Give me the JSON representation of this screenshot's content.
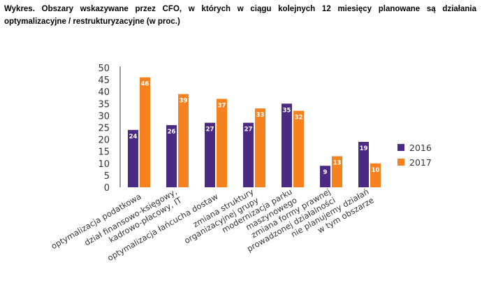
{
  "heading": "Wykres. Obszary wskazywane przez CFO, w których w ciągu kolejnych 12 miesięcy planowane są działania optymalizacyjne / restrukturyzacyjne (w proc.)",
  "chart_data": {
    "type": "bar",
    "title": "",
    "xlabel": "",
    "ylabel": "",
    "ylim": [
      0,
      50
    ],
    "yticks": [
      0,
      5,
      10,
      15,
      20,
      25,
      30,
      35,
      40,
      45,
      50
    ],
    "grid": false,
    "legend_position": "right",
    "categories": [
      [
        "optymalizacja podatkowa"
      ],
      [
        "dział finansowo-księgowy,",
        "kadrowo-płacowy, IT"
      ],
      [
        "optymalizacja łańcucha dostaw"
      ],
      [
        "zmiana struktury",
        "organizacyjnej grupy"
      ],
      [
        "modernizacja parku",
        "maszynowego"
      ],
      [
        "zmiana formy prawnej",
        "prowadzonej działalności"
      ],
      [
        "nie planujemy działań",
        "w tym obszarze"
      ]
    ],
    "series": [
      {
        "name": "2016",
        "color": "#4b2a83",
        "values": [
          24,
          26,
          27,
          27,
          35,
          9,
          19
        ]
      },
      {
        "name": "2017",
        "color": "#f5821f",
        "values": [
          46,
          39,
          37,
          33,
          32,
          13,
          10
        ]
      }
    ]
  }
}
